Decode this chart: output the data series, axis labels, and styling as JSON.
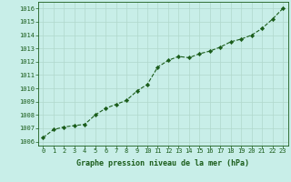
{
  "x": [
    0,
    1,
    2,
    3,
    4,
    5,
    6,
    7,
    8,
    9,
    10,
    11,
    12,
    13,
    14,
    15,
    16,
    17,
    18,
    19,
    20,
    21,
    22,
    23
  ],
  "y": [
    1006.3,
    1006.9,
    1007.1,
    1007.2,
    1007.3,
    1008.0,
    1008.5,
    1008.8,
    1009.1,
    1009.8,
    1010.3,
    1011.6,
    1012.1,
    1012.4,
    1012.3,
    1012.6,
    1012.8,
    1013.1,
    1013.5,
    1013.7,
    1014.0,
    1014.5,
    1015.2,
    1016.0
  ],
  "line_color": "#1a5c1a",
  "marker_color": "#1a5c1a",
  "bg_color": "#c8eee8",
  "grid_color": "#b0d8cc",
  "xlabel": "Graphe pression niveau de la mer (hPa)",
  "xlabel_color": "#1a5c1a",
  "ylabel_ticks": [
    1006,
    1007,
    1008,
    1009,
    1010,
    1011,
    1012,
    1013,
    1014,
    1015,
    1016
  ],
  "ylim": [
    1005.7,
    1016.5
  ],
  "xlim": [
    -0.5,
    23.5
  ],
  "tick_fontsize": 5,
  "label_fontsize": 6
}
